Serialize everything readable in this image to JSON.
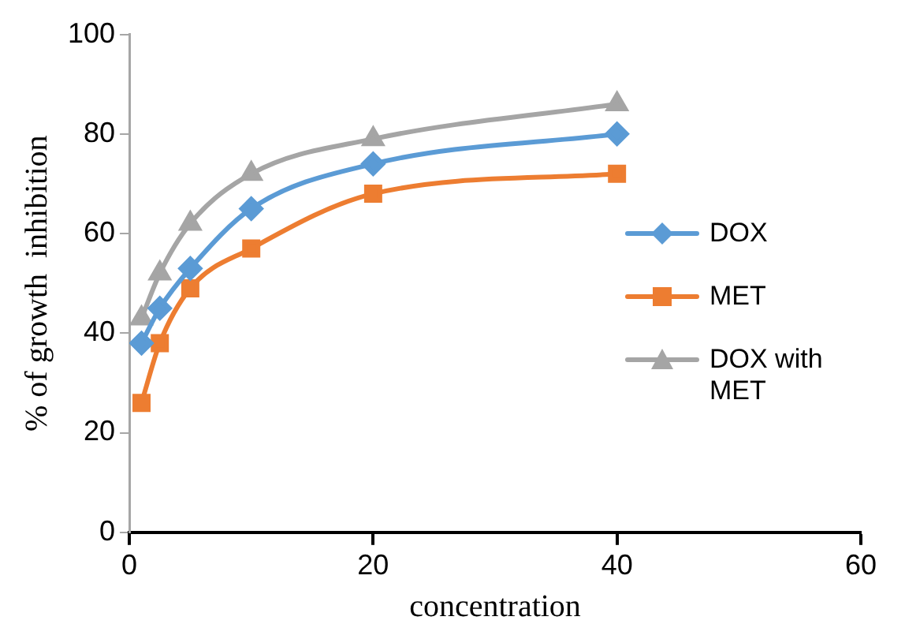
{
  "chart_data": {
    "type": "line",
    "xlabel": "concentration",
    "ylabel": "% of growth  inhibition",
    "x": [
      1,
      2.5,
      5,
      10,
      20,
      40
    ],
    "xlim": [
      0,
      60
    ],
    "xticks": [
      0,
      20,
      40,
      60
    ],
    "ylim": [
      0,
      100
    ],
    "yticks": [
      0,
      20,
      40,
      60,
      80,
      100
    ],
    "grid": false,
    "legend": "right",
    "series": [
      {
        "name": "DOX",
        "color": "#5b9bd5",
        "marker": "diamond",
        "values": [
          38,
          45,
          53,
          65,
          74,
          80
        ]
      },
      {
        "name": "MET",
        "color": "#ed7d31",
        "marker": "square",
        "values": [
          26,
          38,
          49,
          57,
          68,
          72
        ]
      },
      {
        "name": "DOX with MET",
        "color": "#a5a5a5",
        "marker": "triangle",
        "values": [
          43,
          52,
          62,
          72,
          79,
          86
        ]
      }
    ]
  }
}
